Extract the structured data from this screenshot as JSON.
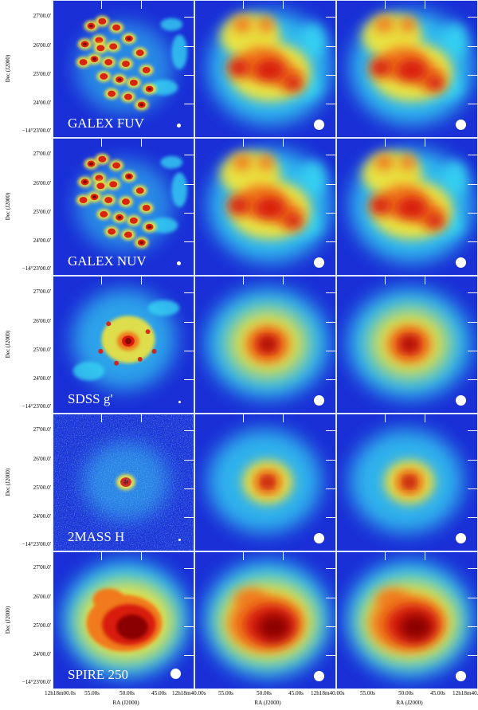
{
  "rows": [
    {
      "label": "GALEX FUV",
      "dec_title": "Dec (J2000)",
      "yticks": [
        "27'00.0'",
        "26'00.0'",
        "25'00.0'",
        "24'00.0'",
        "−14°23'00.0'"
      ],
      "morph": "clumpy_uv"
    },
    {
      "label": "GALEX NUV",
      "dec_title": "Dec (J2000)",
      "yticks": [
        "27'00.0'",
        "26'00.0'",
        "25'00.0'",
        "24'00.0'",
        "−14°23'00.0'"
      ],
      "morph": "clumpy_uv"
    },
    {
      "label": "SDSS g'",
      "dec_title": "Dec (J2000)",
      "yticks": [
        "27'00.0'",
        "26'00.0'",
        "25'00.0'",
        "24'00.0'",
        "−14°23'00.0'"
      ],
      "morph": "spiral_optical"
    },
    {
      "label": "2MASS H",
      "dec_title": "Dec (J2000)",
      "yticks": [
        "27'00.0'",
        "26'00.0'",
        "25'00.0'",
        "24'00.0'",
        "−14°23'00.0'"
      ],
      "morph": "compact_nir"
    },
    {
      "label": "SPIRE 250",
      "dec_title": "Dec (J2000)",
      "yticks": [
        "27'00.0'",
        "26'00.0'",
        "25'00.0'",
        "24'00.0'",
        "−14°23'00.0'"
      ],
      "morph": "diffuse_fir"
    }
  ],
  "xaxis": {
    "first_col_ticks": [
      "12h18m00.0s",
      "55.00s",
      "50.00s",
      "45.00s",
      "12h18m40.00s"
    ],
    "other_col_ticks": [
      "55.00s",
      "50.00s",
      "45.00s",
      "12h18m40.00s"
    ],
    "last_col_ticks": [
      "55.00s",
      "50.00s",
      "45.00s",
      "12h18m40.00s"
    ],
    "title": "RA (J2000)"
  },
  "colors": {
    "background": "#1a2fd6",
    "deep": "#0a14b8",
    "cyan": "#36d3f2",
    "yellow": "#f2e43a",
    "orange": "#f07a1a",
    "red": "#d81a0e",
    "darkred": "#8a0606",
    "border": "#dfe6ff"
  }
}
